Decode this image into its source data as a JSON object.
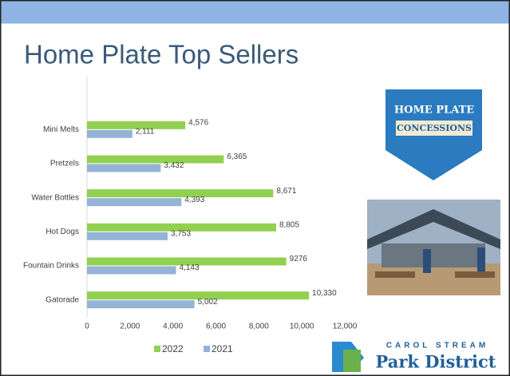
{
  "chart_data": {
    "type": "hbar",
    "title": "Home Plate Top Sellers",
    "categories": [
      "Mini Melts",
      "Pretzels",
      "Water Bottles",
      "Hot Dogs",
      "Fountain Drinks",
      "Gatorade"
    ],
    "series": [
      {
        "name": "2022",
        "color": "#92d050",
        "values": [
          4576,
          6365,
          8671,
          8805,
          9276,
          10330
        ],
        "value_labels": [
          "4,576",
          "6,365",
          "8,671",
          "8,805",
          "9276",
          "10,330"
        ]
      },
      {
        "name": "2021",
        "color": "#95b3d7",
        "values": [
          2111,
          3432,
          4393,
          3753,
          4143,
          5002
        ],
        "value_labels": [
          "2,111",
          "3,432",
          "4,393",
          "3,753",
          "4,143",
          "5,002"
        ]
      }
    ],
    "xlim": [
      0,
      12000
    ],
    "xticks": [
      0,
      {
        "value": 2000,
        "label": "2,000"
      },
      {
        "value": 4000,
        "label": "4,000"
      },
      {
        "value": 6000,
        "label": "6,000"
      },
      {
        "value": 8000,
        "label": "8,000"
      },
      {
        "value": 10000,
        "label": "10,000"
      },
      {
        "value": 12000,
        "label": "12,000"
      }
    ],
    "legend": "bottom"
  },
  "logos": {
    "concessions": [
      "HOME PLATE",
      "CONCESSIONS"
    ],
    "park_district": [
      "CAROL STREAM",
      "Park District"
    ]
  }
}
